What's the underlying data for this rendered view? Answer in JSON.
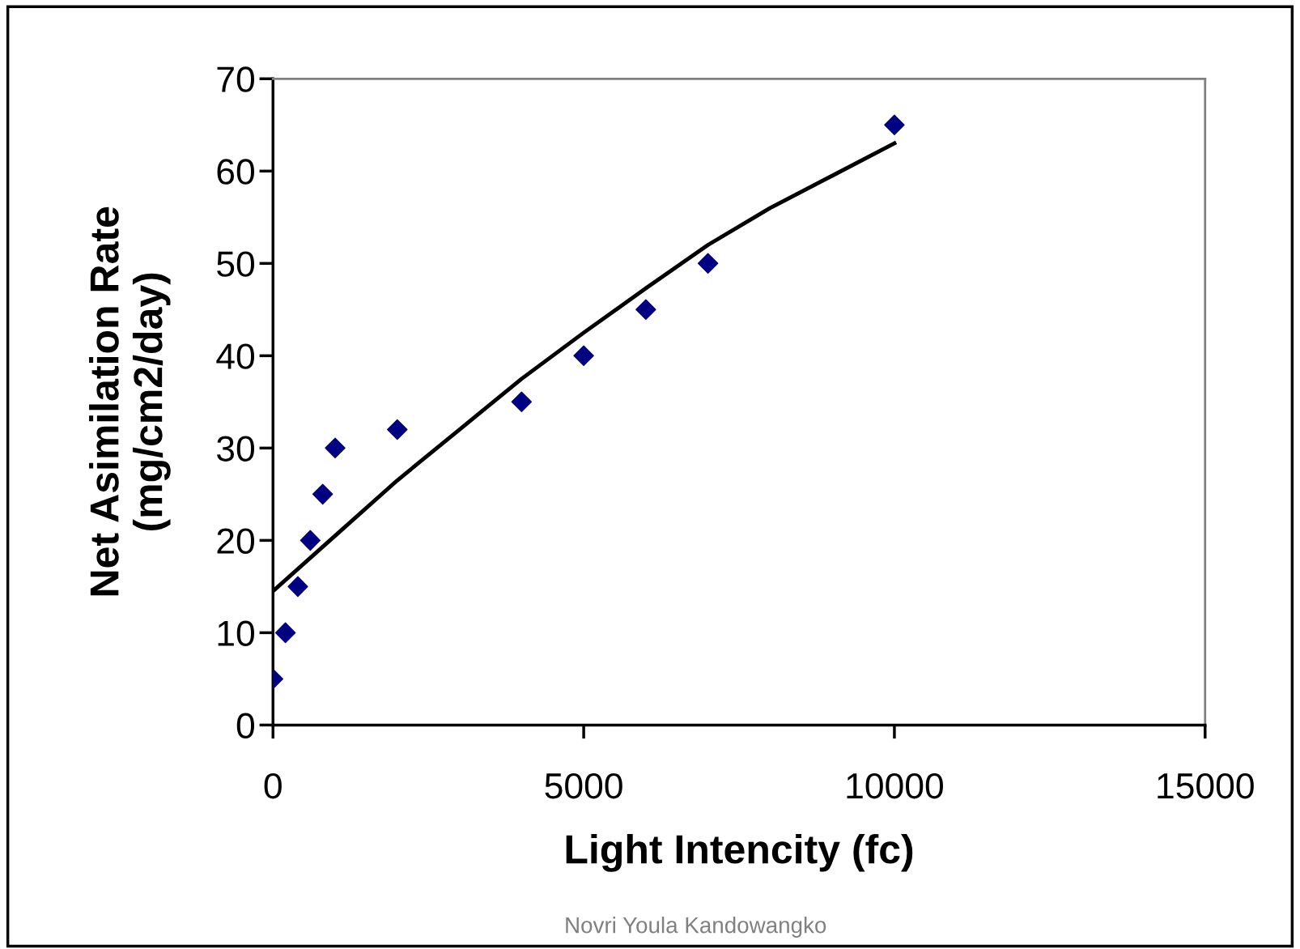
{
  "chart_data": {
    "type": "scatter",
    "xlabel": "Light Intencity (fc)",
    "ylabel": "Net Asimilation Rate\n(mg/cm2/day)",
    "xlim": [
      0,
      15000
    ],
    "xticks": [
      0,
      5000,
      10000,
      15000
    ],
    "ylim": [
      0,
      70
    ],
    "yticks": [
      0,
      10,
      20,
      30,
      40,
      50,
      60,
      70
    ],
    "grid": false,
    "legend": false,
    "x": [
      0,
      200,
      400,
      600,
      800,
      1000,
      2000,
      4000,
      5000,
      6000,
      7000,
      10000
    ],
    "series": [
      {
        "marker": "diamond",
        "color": "#000080",
        "values": [
          5,
          10,
          15,
          20,
          25,
          30,
          32,
          35,
          40,
          45,
          50,
          65
        ]
      },
      {
        "type": "line",
        "marker": "none",
        "color": "#000000",
        "x": [
          0,
          1000,
          2000,
          3000,
          4000,
          5000,
          6000,
          7000,
          8000,
          9000,
          10000
        ],
        "values": [
          14.5,
          20.5,
          26.5,
          32,
          37.5,
          42.5,
          47.3,
          52,
          56,
          59.5,
          63
        ]
      }
    ],
    "annotations": [
      "Novri Youla Kandowangko"
    ]
  }
}
